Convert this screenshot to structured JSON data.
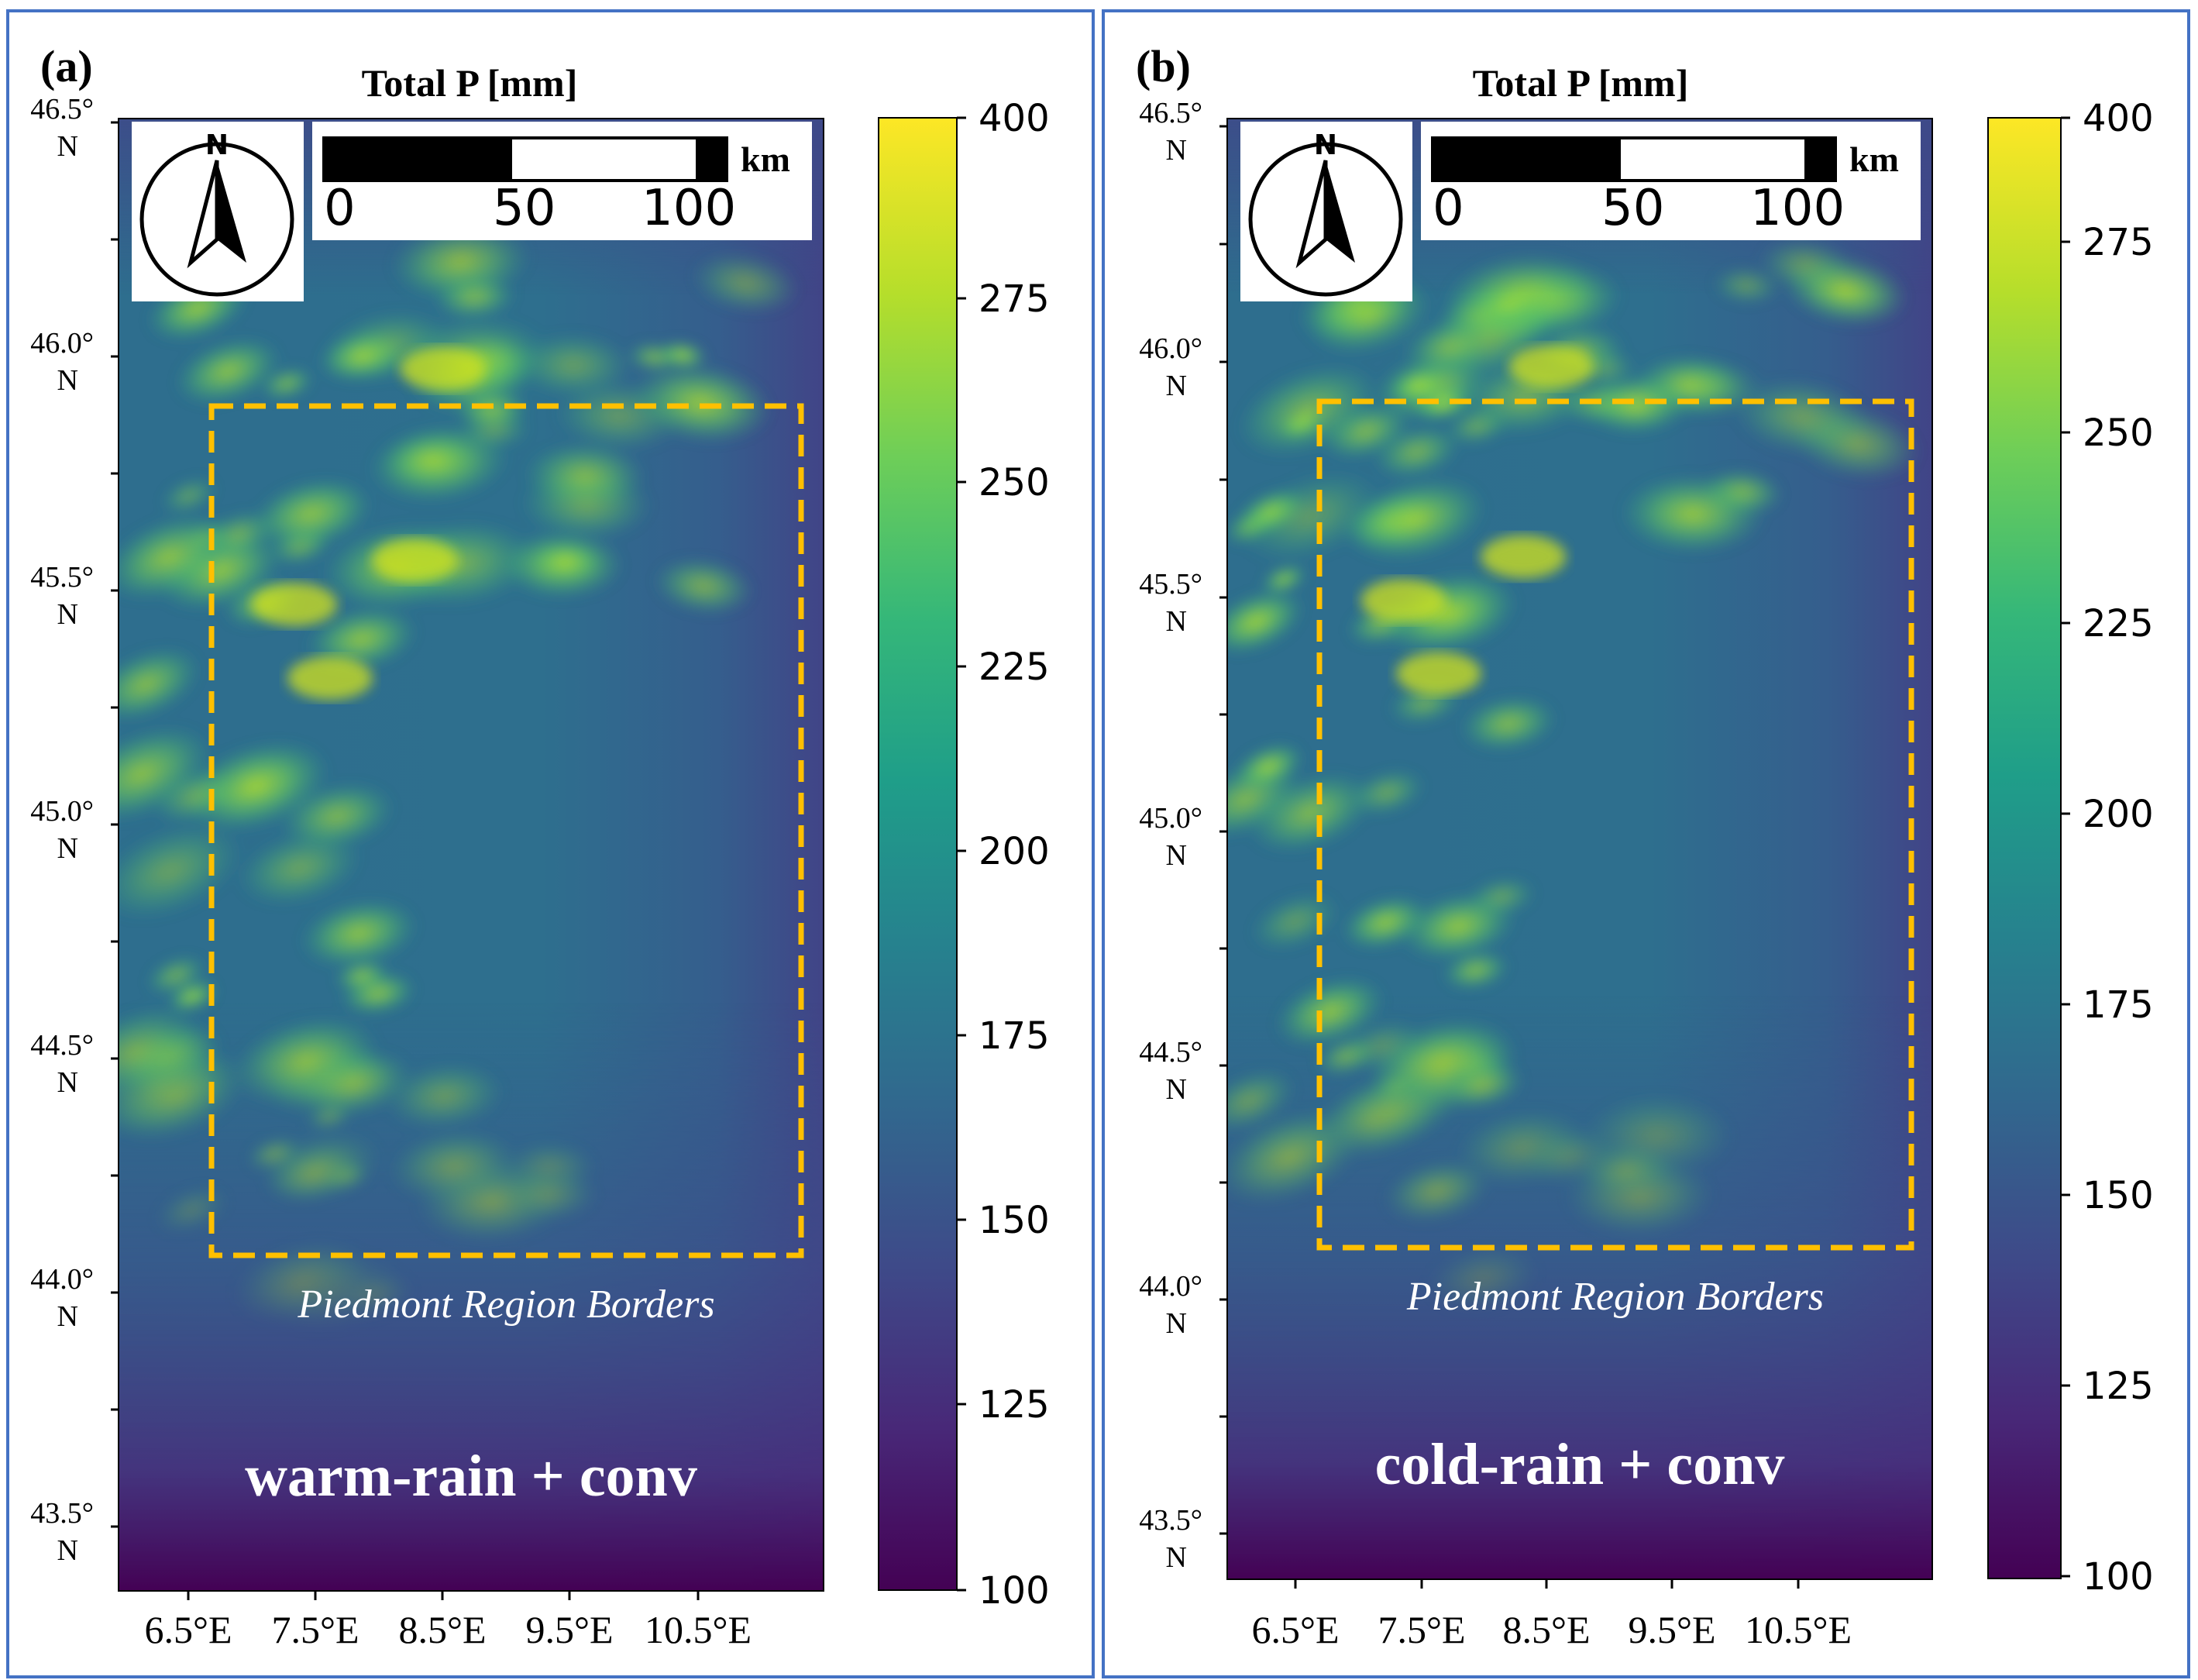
{
  "colors": {
    "panel_border": "#4472C4",
    "region_border": "#FFC000",
    "overlay_text": "#FFFFFF",
    "viridis": [
      "#440154",
      "#482878",
      "#3E4A89",
      "#31688E",
      "#26828E",
      "#1F9E89",
      "#35B779",
      "#6ECE58",
      "#B5DE2B",
      "#FDE725"
    ]
  },
  "panels": [
    {
      "label": "(a)",
      "title": "Total P [mm]",
      "scheme_label": "warm-rain + conv",
      "region_label": "Piedmont Region Borders",
      "north_letter": "N",
      "scale_labels": [
        "0",
        "50",
        "100"
      ],
      "scale_unit": "km",
      "lat_labels": [
        {
          "deg": "46.5°",
          "hemi": "N"
        },
        {
          "deg": "46.0°",
          "hemi": "N"
        },
        {
          "deg": "45.5°",
          "hemi": "N"
        },
        {
          "deg": "45.0°",
          "hemi": "N"
        },
        {
          "deg": "44.5°",
          "hemi": "N"
        },
        {
          "deg": "44.0°",
          "hemi": "N"
        },
        {
          "deg": "43.5°",
          "hemi": "N"
        }
      ],
      "lon_labels": [
        "6.5°E",
        "7.5°E",
        "8.5°E",
        "9.5°E",
        "10.5°E"
      ],
      "colorbar_ticks": [
        "400",
        "275",
        "250",
        "225",
        "200",
        "175",
        "150",
        "125",
        "100"
      ]
    },
    {
      "label": "(b)",
      "title": "Total P [mm]",
      "scheme_label": "cold-rain + conv",
      "region_label": "Piedmont Region Borders",
      "north_letter": "N",
      "scale_labels": [
        "0",
        "50",
        "100"
      ],
      "scale_unit": "km",
      "lat_labels": [
        {
          "deg": "46.5°",
          "hemi": "N"
        },
        {
          "deg": "46.0°",
          "hemi": "N"
        },
        {
          "deg": "45.5°",
          "hemi": "N"
        },
        {
          "deg": "45.0°",
          "hemi": "N"
        },
        {
          "deg": "44.5°",
          "hemi": "N"
        },
        {
          "deg": "44.0°",
          "hemi": "N"
        },
        {
          "deg": "43.5°",
          "hemi": "N"
        }
      ],
      "lon_labels": [
        "6.5°E",
        "7.5°E",
        "8.5°E",
        "9.5°E",
        "10.5°E"
      ],
      "colorbar_ticks": [
        "400",
        "275",
        "250",
        "225",
        "200",
        "175",
        "150",
        "125",
        "100"
      ]
    }
  ]
}
